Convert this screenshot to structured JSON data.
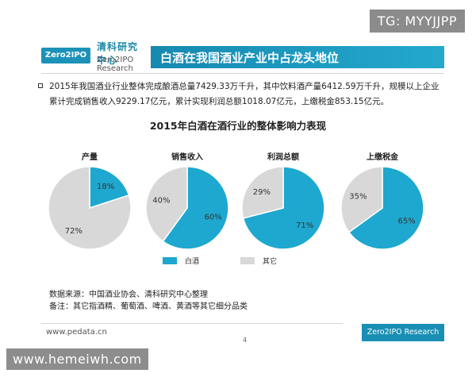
{
  "watermark_top": "TG: MYYJJPP",
  "watermark_bottom": "www.hemeiwh.com",
  "logo": {
    "name_cn": "清科研究中心",
    "name_en": "Zero2IPO Research",
    "mark": "Zero2IPO"
  },
  "header": {
    "title": "白酒在我国酒业产业中占龙头地位"
  },
  "summary": {
    "line1": "2015年我国酒业行业整体完成酿酒总量7429.33万千升，其中饮料酒产量6412.59万千升，规模以上企业",
    "line2": "累计完成销售收入9229.17亿元，累计实现利润总额1018.07亿元，上缴税金853.15亿元。"
  },
  "notes": {
    "source": "数据来源：中国酒业协会、清科研究中心整理",
    "remark": "备注：其它指酒精、葡萄酒、啤酒、黄酒等其它细分品类"
  },
  "footer": {
    "url": "www.pedata.cn",
    "page": "4",
    "brand": "Zero2IPO Research"
  },
  "colors": {
    "baijiu": "#1ea8cf",
    "other": "#d8d8d8",
    "accent": "#1a8fb4"
  },
  "chart_data": {
    "type": "pie",
    "title": "2015年白酒在酒行业的整体影响力表现",
    "legend": [
      "白酒",
      "其它"
    ],
    "legend_position": "bottom",
    "charts": [
      {
        "name": "产量",
        "values": [
          18,
          72
        ],
        "labels": [
          "18%",
          "72%"
        ]
      },
      {
        "name": "销售收入",
        "values": [
          60,
          40
        ],
        "labels": [
          "60%",
          "40%"
        ]
      },
      {
        "name": "利润总额",
        "values": [
          71,
          29
        ],
        "labels": [
          "71%",
          "29%"
        ]
      },
      {
        "name": "上缴税金",
        "values": [
          65,
          35
        ],
        "labels": [
          "65%",
          "35%"
        ]
      }
    ]
  }
}
